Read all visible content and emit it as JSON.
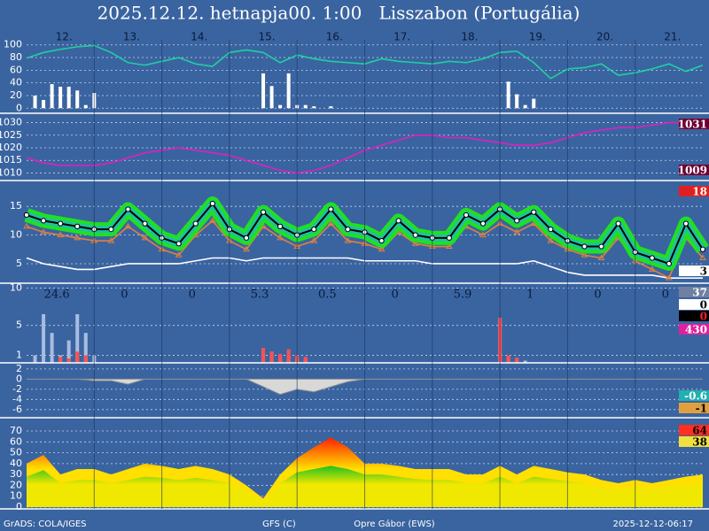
{
  "chart_data": {
    "type": "meteogram",
    "title": "2025.12.12. hetnapja00. 1:00   Lisszabon (Portugália)",
    "categories": [
      "12.",
      "13.",
      "14.",
      "15.",
      "16.",
      "17.",
      "18.",
      "19.",
      "20.",
      "21."
    ],
    "grid": true,
    "panels": [
      {
        "ylim": [
          -8,
          108
        ],
        "yticks": [
          0,
          20,
          40,
          60,
          80,
          100
        ],
        "series": [
          {
            "kind": "bars",
            "color": "#ffffff",
            "values": [
              0,
              20,
              13,
              38,
              34,
              34,
              28,
              5,
              24,
              0,
              0,
              0,
              0,
              0,
              0,
              0,
              0,
              0,
              0,
              0,
              0,
              0,
              0,
              0,
              0,
              0,
              0,
              0,
              55,
              35,
              5,
              55,
              5,
              5,
              3,
              0,
              3,
              0,
              0,
              0,
              0,
              0,
              0,
              0,
              0,
              0,
              0,
              0,
              0,
              0,
              0,
              0,
              0,
              0,
              0,
              0,
              0,
              42,
              22,
              5,
              15,
              0,
              0,
              0,
              0,
              0,
              0,
              0,
              0,
              0,
              0,
              0,
              0,
              0,
              0,
              0,
              0,
              0,
              0,
              0,
              0
            ]
          },
          {
            "kind": "line",
            "color": "#20d0a0",
            "values": [
              79,
              88,
              93,
              97,
              99,
              88,
              72,
              68,
              74,
              80,
              70,
              66,
              88,
              92,
              88,
              72,
              84,
              78,
              74,
              72,
              70,
              78,
              74,
              72,
              70,
              74,
              72,
              78,
              88,
              90,
              72,
              47,
              62,
              64,
              70,
              52,
              56,
              62,
              70,
              58,
              68
            ]
          }
        ]
      },
      {
        "ylim": [
          1007,
          1033
        ],
        "yticks": [
          1010,
          1015,
          1020,
          1025,
          1030
        ],
        "series": [
          {
            "kind": "line",
            "color": "#e020c0",
            "values": [
              1016,
              1014,
              1013,
              1013,
              1013,
              1014,
              1016,
              1018,
              1019,
              1020,
              1019,
              1018,
              1017,
              1015,
              1013,
              1011,
              1010,
              1011,
              1013,
              1016,
              1019,
              1021,
              1023,
              1025,
              1025,
              1024,
              1024,
              1023,
              1022,
              1021,
              1021,
              1022,
              1024,
              1026,
              1027,
              1028,
              1028,
              1029,
              1030,
              1030,
              1030
            ]
          }
        ],
        "badges": [
          {
            "value": 1031,
            "color": "#ffffff",
            "background": "#700030"
          },
          {
            "value": 1009,
            "color": "#ffffff",
            "background": "#700030"
          }
        ]
      },
      {
        "ylim": [
          1.6,
          19.2
        ],
        "yticks": [
          5,
          10,
          15
        ],
        "series": [
          {
            "kind": "line",
            "color": "#ffffff",
            "values": [
              6,
              5,
              4.5,
              4,
              4,
              4.5,
              5,
              5,
              5,
              5,
              5.5,
              6,
              6,
              5.5,
              6,
              6,
              6,
              6,
              6,
              6,
              5.5,
              5.5,
              5.5,
              5.5,
              5,
              5,
              5,
              5,
              5,
              5,
              5.5,
              4.5,
              3.5,
              3,
              3,
              3,
              3,
              3,
              2.5,
              2.5,
              2.5
            ]
          },
          {
            "kind": "line",
            "marker": "triangle",
            "color": "#e08040",
            "values": [
              11.5,
              10.5,
              10,
              9.5,
              9,
              9,
              11.5,
              9.5,
              7.5,
              6.5,
              10,
              12.5,
              9,
              7.5,
              11.5,
              9.5,
              8,
              9,
              12,
              9,
              8.5,
              7.5,
              10.5,
              8.5,
              8,
              8,
              11.5,
              10,
              12,
              10.5,
              12,
              9,
              7.5,
              6.5,
              6,
              9.5,
              5.5,
              4,
              2.5,
              9.5,
              6
            ]
          },
          {
            "kind": "line",
            "marker": "dot",
            "color": "#000000",
            "halo": [
              "#20e020",
              "#20c0a0"
            ],
            "values": [
              13.5,
              12.5,
              12,
              11.5,
              11,
              11,
              14.5,
              12,
              9.5,
              8.5,
              12,
              15.5,
              11,
              9.5,
              14,
              11.5,
              10,
              11,
              14.5,
              11,
              10.5,
              9,
              12.5,
              10,
              9.5,
              9.5,
              13.5,
              12,
              14.5,
              12.5,
              14,
              11,
              9,
              8,
              8,
              12,
              7,
              6,
              5,
              12,
              7.5
            ]
          }
        ],
        "badges": [
          {
            "value": 18,
            "color": "#ffffff",
            "background": "#e02020"
          },
          {
            "value": 3,
            "color": "#000000",
            "background": "#ffffff"
          }
        ]
      },
      {
        "ylim": [
          0,
          10.4
        ],
        "yticks": [
          1,
          5,
          10
        ],
        "totals": [
          24.6,
          0,
          0,
          5.3,
          0.5,
          0,
          5.9,
          1,
          0,
          0
        ],
        "series": [
          {
            "kind": "bars",
            "color": "#a8bce0",
            "values": [
              0,
              1,
              6.5,
              4,
              1,
              3,
              6.5,
              4,
              1,
              0,
              0,
              0,
              0,
              0,
              0,
              0,
              0,
              0,
              0,
              0,
              0,
              0,
              0,
              0,
              0,
              0,
              0,
              0,
              1.5,
              1.5,
              1,
              1,
              0.6,
              0.5,
              0,
              0,
              0,
              0,
              0,
              0,
              0,
              0,
              0,
              0,
              0,
              0,
              0,
              0,
              0,
              0,
              0,
              0,
              0,
              0,
              0,
              0,
              6,
              1,
              0.5,
              0.3,
              0,
              0,
              0,
              0,
              0,
              0,
              0,
              0,
              0,
              0,
              0,
              0,
              0,
              0,
              0,
              0,
              0,
              0,
              0,
              0,
              0
            ]
          },
          {
            "kind": "bars",
            "color": "#ff5050",
            "values": [
              0,
              0,
              0,
              0,
              0.8,
              0.6,
              1.5,
              1,
              0,
              0,
              0,
              0,
              0,
              0,
              0,
              0,
              0,
              0,
              0,
              0,
              0,
              0,
              0,
              0,
              0,
              0,
              0,
              0,
              2,
              1.5,
              1.2,
              1.8,
              1,
              0.8,
              0,
              0,
              0,
              0,
              0,
              0,
              0,
              0,
              0,
              0,
              0,
              0,
              0,
              0,
              0,
              0,
              0,
              0,
              0,
              0,
              0,
              0,
              6,
              1,
              0.7,
              0,
              0,
              0,
              0,
              0,
              0,
              0,
              0,
              0,
              0,
              0,
              0,
              0,
              0,
              0,
              0,
              0,
              0,
              0,
              0,
              0,
              0
            ]
          }
        ],
        "badges": [
          {
            "value": 37,
            "color": "#ffffff",
            "background": "#7080a0"
          },
          {
            "value": 0,
            "color": "#000000",
            "background": "#ffffff"
          },
          {
            "value": 0,
            "color": "#ff2020",
            "background": "#000000"
          },
          {
            "value": 430,
            "color": "#ffffff",
            "background": "#e020a0"
          }
        ]
      },
      {
        "ylim": [
          -7.6,
          3.2
        ],
        "yticks": [
          2,
          0,
          -2,
          -4,
          -6
        ],
        "series": [
          {
            "kind": "area",
            "color": "#d8d8d8",
            "values": [
              0,
              0,
              0,
              0,
              -0.3,
              -0.3,
              -1,
              0,
              0,
              0,
              0,
              0,
              0,
              0,
              -1.5,
              -3,
              -2,
              -2.5,
              -1.5,
              -0.5,
              0,
              0,
              0,
              0,
              0,
              0,
              0,
              0,
              0,
              0,
              0,
              0,
              0,
              0,
              0,
              0,
              0,
              0,
              0,
              0,
              0
            ]
          }
        ],
        "badges": [
          {
            "value": -0.6,
            "color": "#ffffff",
            "background": "#20b0b0"
          },
          {
            "value": -1.0,
            "color": "#000000",
            "background": "#e0a040"
          }
        ]
      },
      {
        "ylim": [
          -1.6,
          80.6
        ],
        "yticks": [
          0,
          10,
          20,
          30,
          40,
          50,
          60,
          70
        ],
        "series": [
          {
            "kind": "area",
            "colors": [
              "#ff2000",
              "#ffe000"
            ],
            "values": [
              40,
              48,
              30,
              35,
              35,
              30,
              35,
              40,
              38,
              35,
              38,
              35,
              30,
              20,
              8,
              30,
              45,
              55,
              64,
              55,
              40,
              40,
              38,
              35,
              35,
              35,
              30,
              30,
              38,
              30,
              38,
              35,
              32,
              30,
              25,
              22,
              25,
              22,
              25,
              28,
              30
            ]
          },
          {
            "kind": "area",
            "colors": [
              "#20c020",
              "#f0e800"
            ],
            "values": [
              28,
              34,
              22,
              25,
              25,
              22,
              25,
              28,
              27,
              25,
              27,
              25,
              22,
              14,
              5,
              22,
              32,
              35,
              38,
              35,
              30,
              30,
              28,
              26,
              25,
              25,
              22,
              22,
              28,
              22,
              28,
              26,
              24,
              22,
              18,
              16,
              18,
              16,
              18,
              20,
              22
            ]
          }
        ],
        "badges": [
          {
            "value": 64,
            "color": "#000000",
            "background": "#ff3020"
          },
          {
            "value": 38,
            "color": "#000000",
            "background": "#f0e040"
          }
        ]
      }
    ]
  },
  "footer": [
    "GrADS: COLA/IGES",
    "GFS (C)",
    "Opre Gábor (EWS)",
    "2025-12-12-06:17"
  ]
}
